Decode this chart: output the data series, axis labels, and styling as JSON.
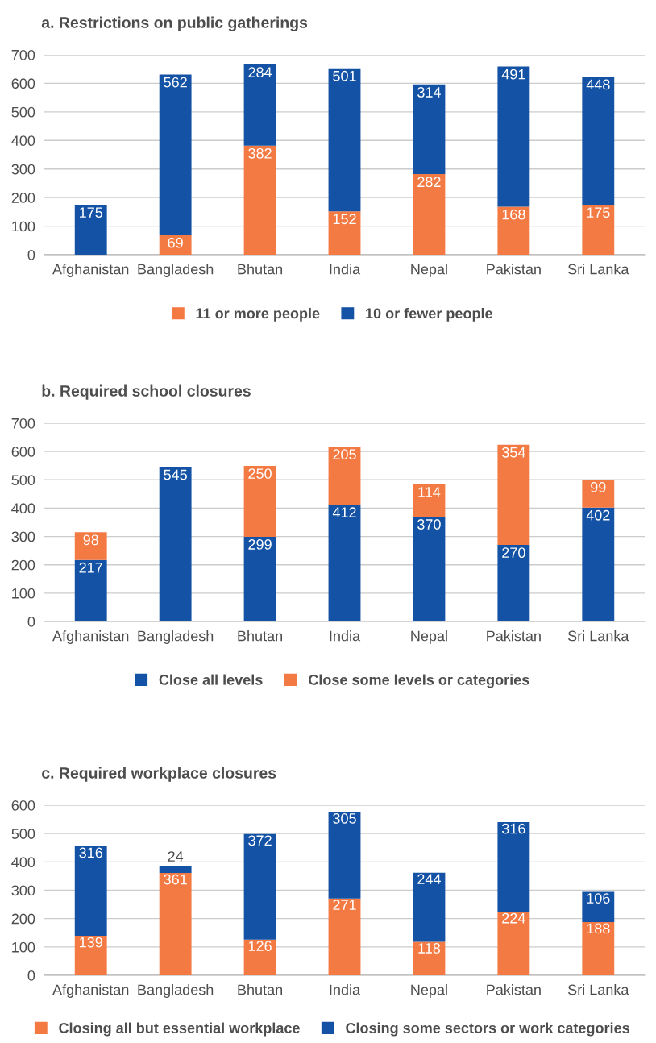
{
  "chart_data": [
    {
      "type": "bar",
      "title": "a. Restrictions on public gatherings",
      "categories": [
        "Afghanistan",
        "Bangladesh",
        "Bhutan",
        "India",
        "Nepal",
        "Pakistan",
        "Sri Lanka"
      ],
      "stacked": true,
      "ylim": [
        0,
        700
      ],
      "yticks": [
        0,
        100,
        200,
        300,
        400,
        500,
        600,
        700
      ],
      "grid": "y",
      "legend": "bottom",
      "data_labels": true,
      "series": [
        {
          "name": "11 or more people",
          "color": "#f47a44",
          "values": [
            null,
            69,
            382,
            152,
            282,
            168,
            175
          ]
        },
        {
          "name": "10 or fewer people",
          "color": "#1352a4",
          "values": [
            175,
            562,
            284,
            501,
            314,
            491,
            448
          ]
        }
      ]
    },
    {
      "type": "bar",
      "title": "b. Required school closures",
      "categories": [
        "Afghanistan",
        "Bangladesh",
        "Bhutan",
        "India",
        "Nepal",
        "Pakistan",
        "Sri Lanka"
      ],
      "stacked": true,
      "ylim": [
        0,
        700
      ],
      "yticks": [
        0,
        100,
        200,
        300,
        400,
        500,
        600,
        700
      ],
      "grid": "y",
      "legend": "bottom",
      "data_labels": true,
      "series": [
        {
          "name": "Close all levels",
          "color": "#1352a4",
          "values": [
            217,
            545,
            299,
            412,
            370,
            270,
            402
          ]
        },
        {
          "name": "Close some levels or categories",
          "color": "#f47a44",
          "values": [
            98,
            null,
            250,
            205,
            114,
            354,
            99
          ]
        }
      ]
    },
    {
      "type": "bar",
      "title": "c. Required workplace closures",
      "categories": [
        "Afghanistan",
        "Bangladesh",
        "Bhutan",
        "India",
        "Nepal",
        "Pakistan",
        "Sri Lanka"
      ],
      "stacked": true,
      "ylim": [
        0,
        600
      ],
      "yticks": [
        0,
        100,
        200,
        300,
        400,
        500,
        600
      ],
      "grid": "y",
      "legend": "bottom",
      "data_labels": true,
      "series": [
        {
          "name": "Closing all but essential workplace",
          "color": "#f47a44",
          "values": [
            139,
            361,
            126,
            271,
            118,
            224,
            188
          ]
        },
        {
          "name": "Closing some sectors or work categories",
          "color": "#1352a4",
          "values": [
            316,
            24,
            372,
            305,
            244,
            316,
            106
          ]
        }
      ]
    }
  ]
}
